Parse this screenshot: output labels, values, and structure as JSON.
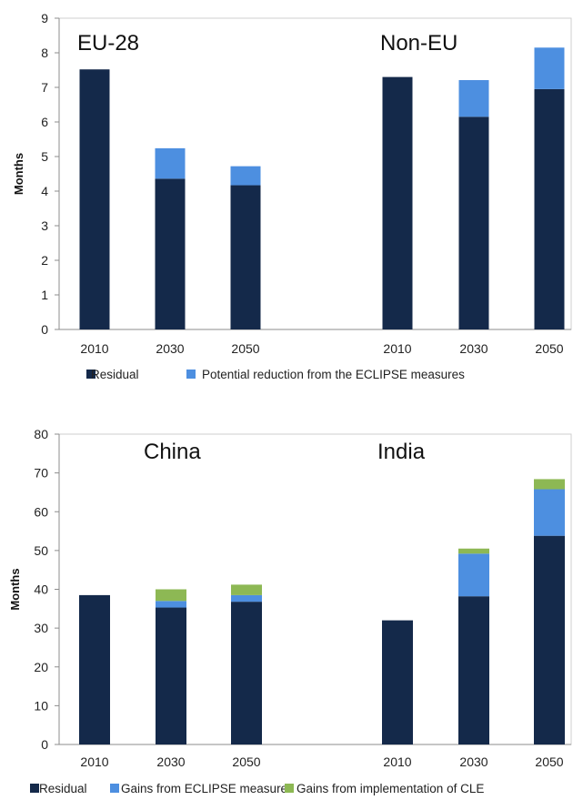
{
  "chart_data": [
    {
      "type": "bar",
      "stacked": true,
      "ylabel": "Months",
      "ylim": [
        0,
        9
      ],
      "yticks": [
        0,
        1,
        2,
        3,
        4,
        5,
        6,
        7,
        8,
        9
      ],
      "grid": false,
      "legend_position": "bottom",
      "groups": [
        {
          "label": "EU-28",
          "categories": [
            "2010",
            "2030",
            "2050"
          ]
        },
        {
          "label": "Non-EU",
          "categories": [
            "2010",
            "2030",
            "2050"
          ]
        }
      ],
      "series": [
        {
          "name": "Residual",
          "color": "#14294a",
          "values": [
            7.52,
            4.36,
            4.17,
            7.3,
            6.15,
            6.95
          ]
        },
        {
          "name": "Potential reduction from the ECLIPSE measures",
          "color": "#4d8fe0",
          "values": [
            0,
            0.88,
            0.55,
            0,
            1.06,
            1.2
          ]
        }
      ]
    },
    {
      "type": "bar",
      "stacked": true,
      "ylabel": "Months",
      "ylim": [
        0,
        80
      ],
      "yticks": [
        0,
        10,
        20,
        30,
        40,
        50,
        60,
        70,
        80
      ],
      "grid": false,
      "legend_position": "bottom",
      "groups": [
        {
          "label": "China",
          "categories": [
            "2010",
            "2030",
            "2050"
          ]
        },
        {
          "label": "India",
          "categories": [
            "2010",
            "2030",
            "2050"
          ]
        }
      ],
      "series": [
        {
          "name": "Residual",
          "color": "#14294a",
          "values": [
            38.5,
            35.3,
            36.8,
            32.0,
            38.2,
            53.8
          ]
        },
        {
          "name": "Gains from ECLIPSE measures",
          "color": "#4d8fe0",
          "values": [
            0,
            1.7,
            1.7,
            0,
            11.0,
            12.0
          ]
        },
        {
          "name": "Gains from implementation of CLE",
          "color": "#8db854",
          "values": [
            0,
            3.0,
            2.7,
            0,
            1.3,
            2.6
          ]
        }
      ]
    }
  ]
}
